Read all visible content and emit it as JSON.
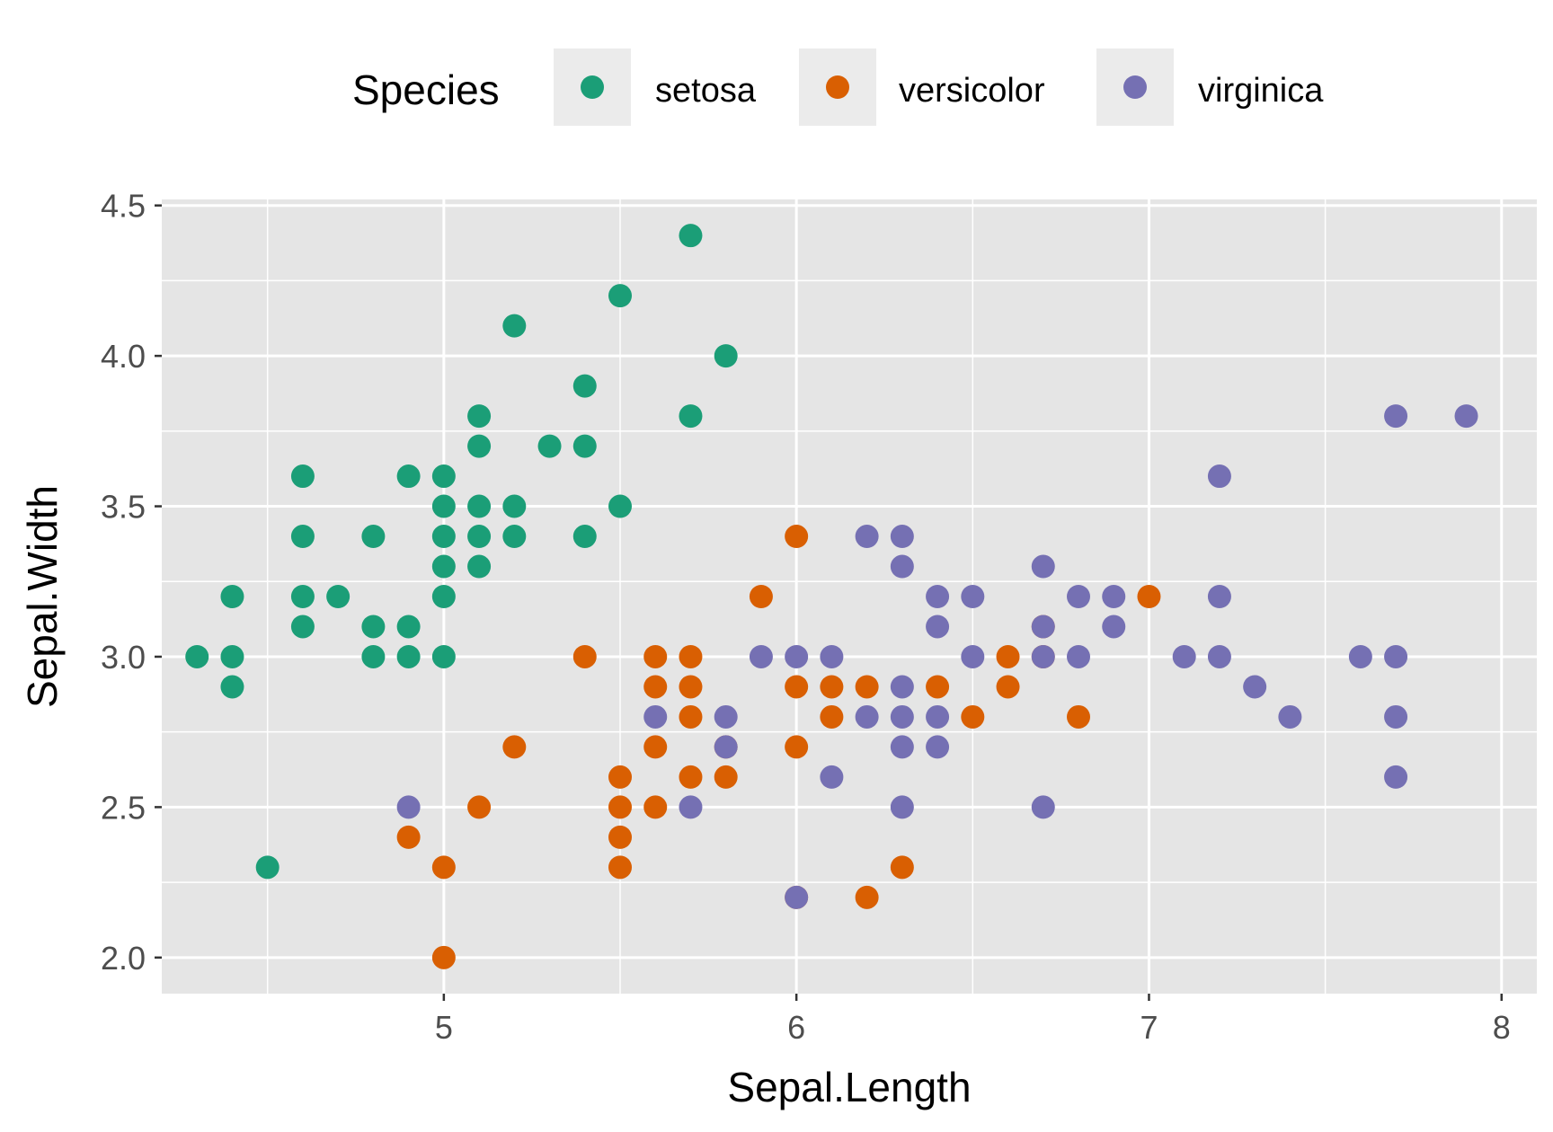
{
  "chart_data": {
    "type": "scatter",
    "xlabel": "Sepal.Length",
    "ylabel": "Sepal.Width",
    "xlim": [
      4.2,
      8.1
    ],
    "ylim": [
      1.88,
      4.52
    ],
    "x_ticks": [
      5,
      6,
      7,
      8
    ],
    "x_tick_labels": [
      "5",
      "6",
      "7",
      "8"
    ],
    "y_ticks": [
      2.0,
      2.5,
      3.0,
      3.5,
      4.0,
      4.5
    ],
    "y_tick_labels": [
      "2.0",
      "2.5",
      "3.0",
      "3.5",
      "4.0",
      "4.5"
    ],
    "grid": true,
    "legend_title": "Species",
    "legend_position": "top",
    "panel_background": "#e5e5e5",
    "series": [
      {
        "name": "setosa",
        "color": "#1b9e77",
        "points": [
          [
            4.3,
            3.0
          ],
          [
            4.4,
            3.2
          ],
          [
            4.4,
            3.0
          ],
          [
            4.4,
            2.9
          ],
          [
            4.5,
            2.3
          ],
          [
            4.6,
            3.6
          ],
          [
            4.6,
            3.4
          ],
          [
            4.6,
            3.2
          ],
          [
            4.6,
            3.1
          ],
          [
            4.7,
            3.2
          ],
          [
            4.8,
            3.4
          ],
          [
            4.8,
            3.1
          ],
          [
            4.8,
            3.0
          ],
          [
            4.9,
            3.6
          ],
          [
            4.9,
            3.1
          ],
          [
            4.9,
            3.0
          ],
          [
            5.0,
            3.6
          ],
          [
            5.0,
            3.5
          ],
          [
            5.0,
            3.4
          ],
          [
            5.0,
            3.3
          ],
          [
            5.0,
            3.2
          ],
          [
            5.0,
            3.0
          ],
          [
            5.1,
            3.8
          ],
          [
            5.1,
            3.7
          ],
          [
            5.1,
            3.5
          ],
          [
            5.1,
            3.4
          ],
          [
            5.1,
            3.3
          ],
          [
            5.2,
            4.1
          ],
          [
            5.2,
            3.5
          ],
          [
            5.2,
            3.4
          ],
          [
            5.3,
            3.7
          ],
          [
            5.4,
            3.9
          ],
          [
            5.4,
            3.7
          ],
          [
            5.4,
            3.4
          ],
          [
            5.5,
            4.2
          ],
          [
            5.5,
            3.5
          ],
          [
            5.7,
            4.4
          ],
          [
            5.7,
            3.8
          ],
          [
            5.8,
            4.0
          ]
        ]
      },
      {
        "name": "versicolor",
        "color": "#d95f02",
        "points": [
          [
            4.9,
            2.4
          ],
          [
            5.0,
            2.3
          ],
          [
            5.0,
            2.0
          ],
          [
            5.1,
            2.5
          ],
          [
            5.2,
            2.7
          ],
          [
            5.4,
            3.0
          ],
          [
            5.5,
            2.6
          ],
          [
            5.5,
            2.5
          ],
          [
            5.5,
            2.4
          ],
          [
            5.5,
            2.3
          ],
          [
            5.6,
            3.0
          ],
          [
            5.6,
            2.9
          ],
          [
            5.6,
            2.7
          ],
          [
            5.6,
            2.5
          ],
          [
            5.7,
            3.0
          ],
          [
            5.7,
            2.9
          ],
          [
            5.7,
            2.8
          ],
          [
            5.7,
            2.6
          ],
          [
            5.8,
            2.7
          ],
          [
            5.8,
            2.6
          ],
          [
            5.9,
            3.2
          ],
          [
            6.0,
            3.4
          ],
          [
            6.0,
            2.9
          ],
          [
            6.0,
            2.7
          ],
          [
            6.0,
            2.2
          ],
          [
            6.1,
            2.9
          ],
          [
            6.1,
            2.8
          ],
          [
            6.2,
            2.9
          ],
          [
            6.2,
            2.2
          ],
          [
            6.3,
            2.3
          ],
          [
            6.4,
            2.9
          ],
          [
            6.5,
            2.8
          ],
          [
            6.6,
            3.0
          ],
          [
            6.6,
            2.9
          ],
          [
            6.7,
            3.1
          ],
          [
            6.7,
            3.0
          ],
          [
            6.8,
            2.8
          ],
          [
            7.0,
            3.2
          ]
        ]
      },
      {
        "name": "virginica",
        "color": "#7570b3",
        "points": [
          [
            4.9,
            2.5
          ],
          [
            5.6,
            2.8
          ],
          [
            5.7,
            2.5
          ],
          [
            5.8,
            2.8
          ],
          [
            5.8,
            2.7
          ],
          [
            5.9,
            3.0
          ],
          [
            6.0,
            3.0
          ],
          [
            6.0,
            2.2
          ],
          [
            6.1,
            3.0
          ],
          [
            6.1,
            2.6
          ],
          [
            6.2,
            3.4
          ],
          [
            6.2,
            2.8
          ],
          [
            6.3,
            3.4
          ],
          [
            6.3,
            3.3
          ],
          [
            6.3,
            2.9
          ],
          [
            6.3,
            2.8
          ],
          [
            6.3,
            2.7
          ],
          [
            6.3,
            2.5
          ],
          [
            6.4,
            3.2
          ],
          [
            6.4,
            3.1
          ],
          [
            6.4,
            2.8
          ],
          [
            6.4,
            2.7
          ],
          [
            6.5,
            3.2
          ],
          [
            6.5,
            3.0
          ],
          [
            6.7,
            3.3
          ],
          [
            6.7,
            3.1
          ],
          [
            6.7,
            3.0
          ],
          [
            6.7,
            2.5
          ],
          [
            6.8,
            3.2
          ],
          [
            6.8,
            3.0
          ],
          [
            6.9,
            3.2
          ],
          [
            6.9,
            3.1
          ],
          [
            7.1,
            3.0
          ],
          [
            7.2,
            3.6
          ],
          [
            7.2,
            3.2
          ],
          [
            7.2,
            3.0
          ],
          [
            7.3,
            2.9
          ],
          [
            7.4,
            2.8
          ],
          [
            7.6,
            3.0
          ],
          [
            7.7,
            3.8
          ],
          [
            7.7,
            3.0
          ],
          [
            7.7,
            2.8
          ],
          [
            7.7,
            2.6
          ],
          [
            7.9,
            3.8
          ]
        ]
      }
    ]
  }
}
